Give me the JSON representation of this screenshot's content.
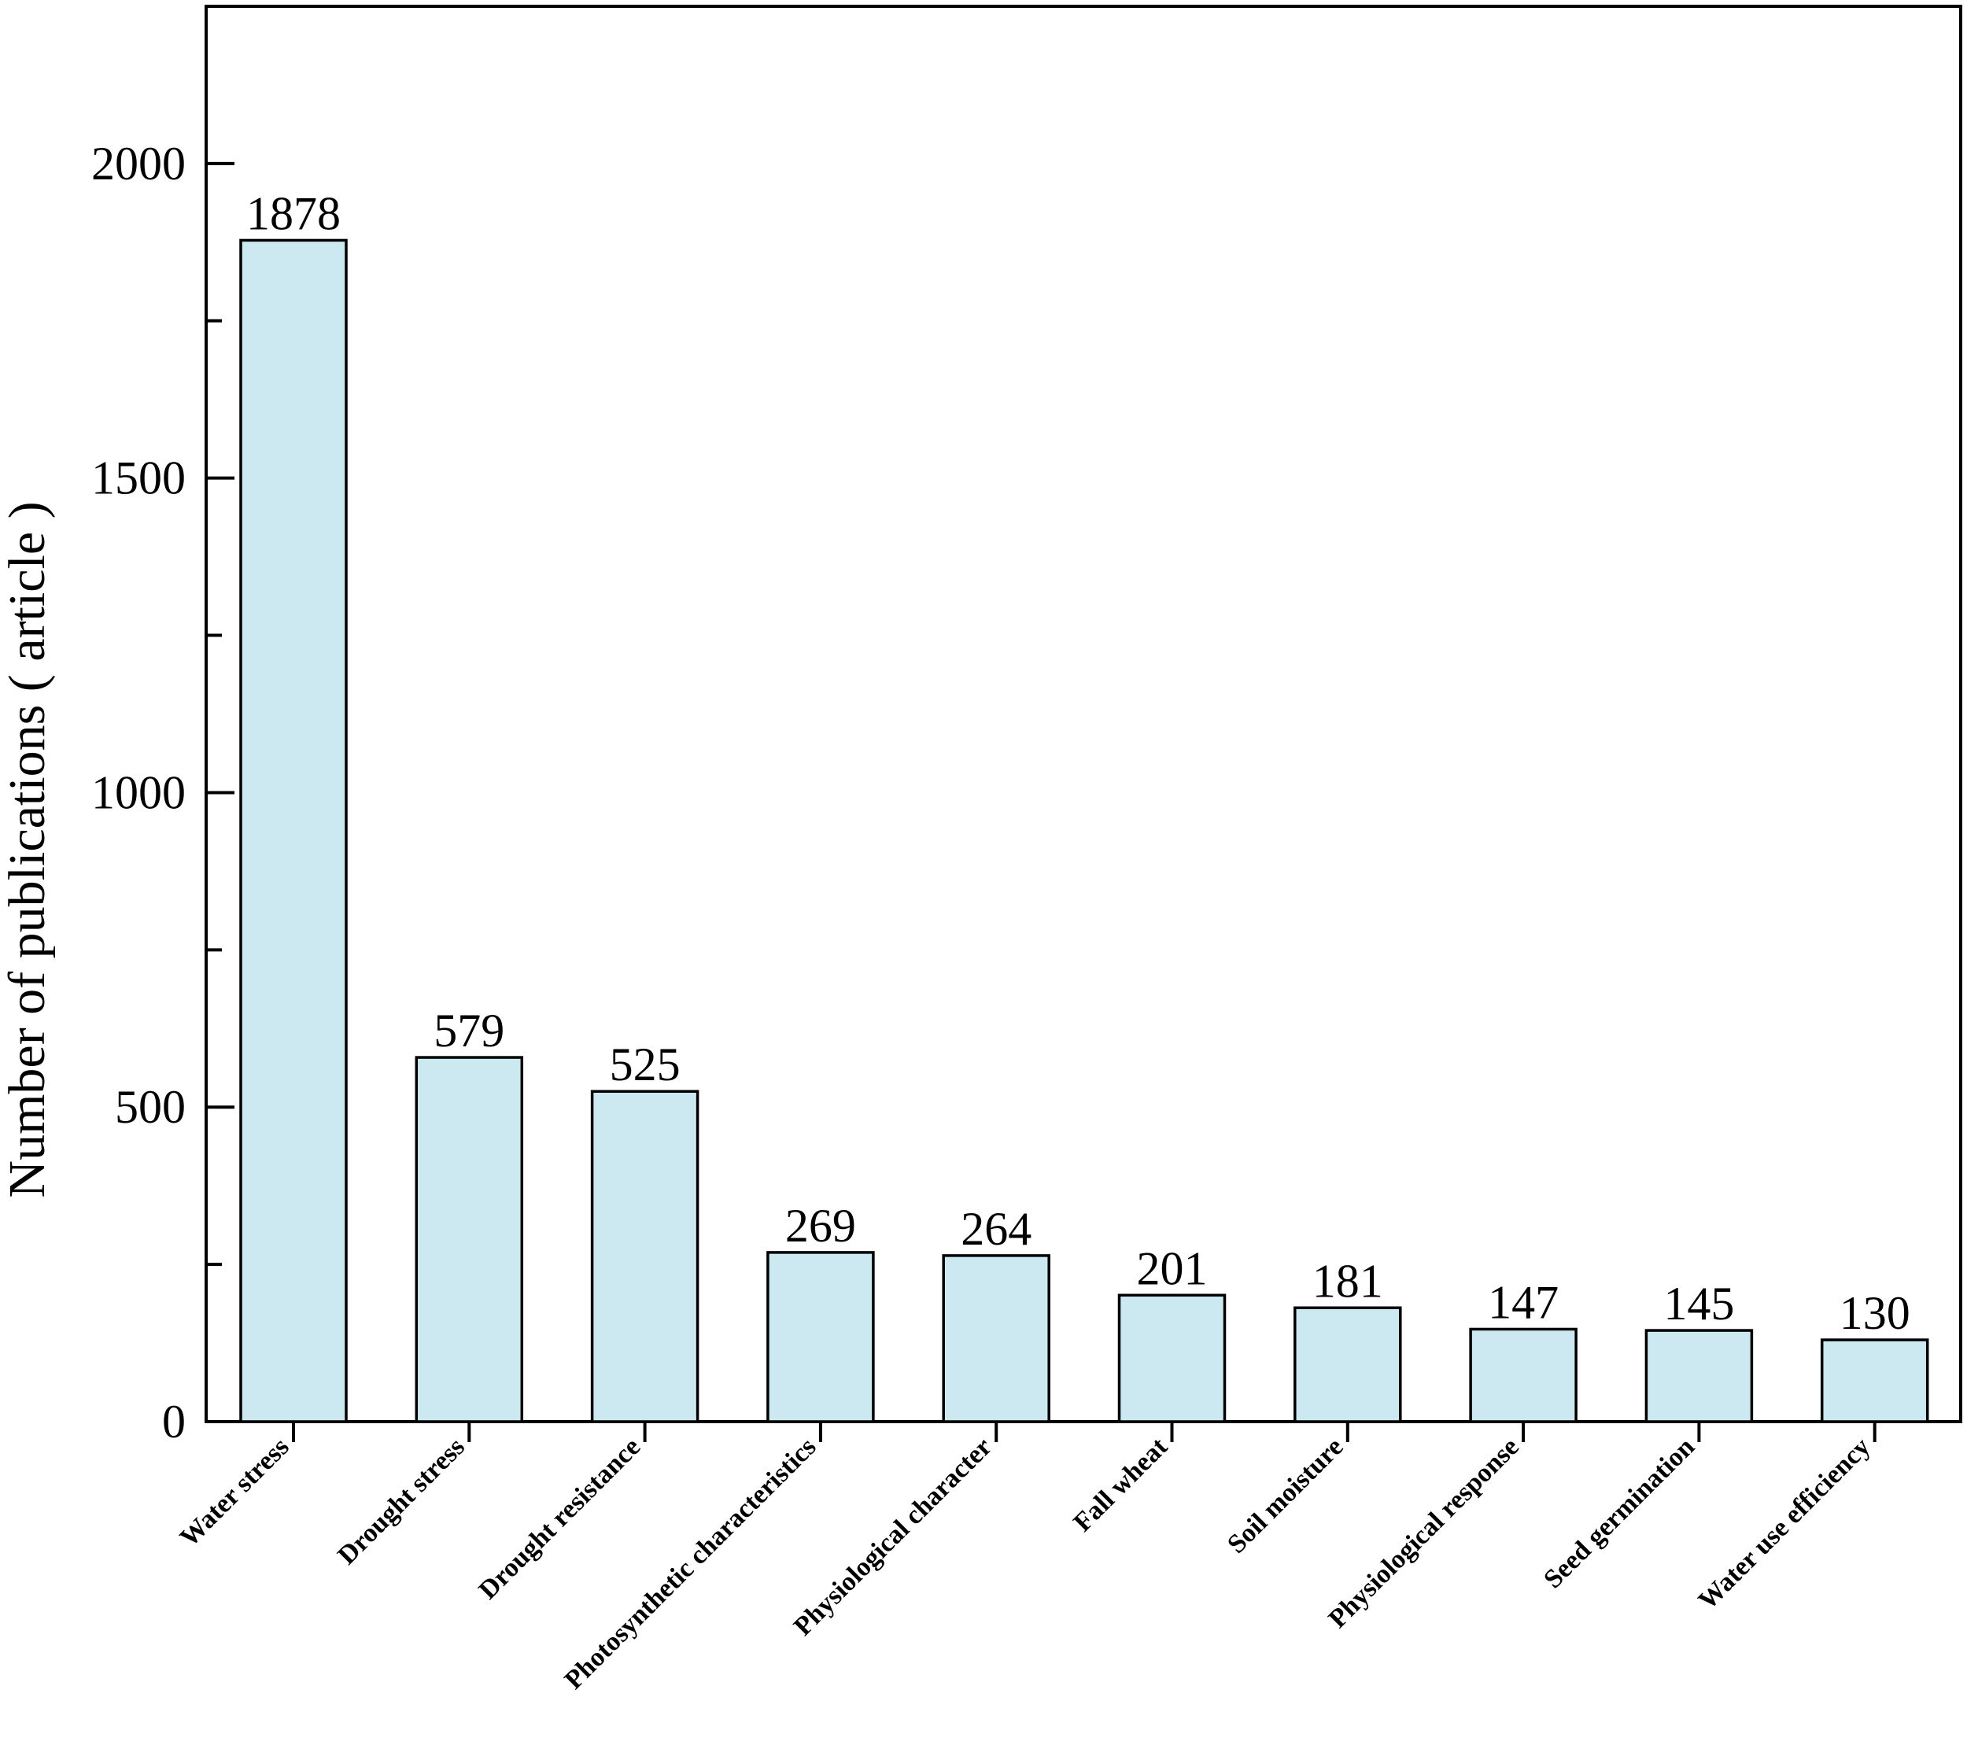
{
  "chart_data": {
    "type": "bar",
    "categories": [
      "Water stress",
      "Drought stress",
      "Drought resistance",
      "Photosynthetic characteristics",
      "Physiological character",
      "Fall wheat",
      "Soil moisture",
      "Physiological response",
      "Seed germination",
      "Water use efficiency"
    ],
    "values": [
      1878,
      579,
      525,
      269,
      264,
      201,
      181,
      147,
      145,
      130
    ],
    "value_labels": [
      "1878",
      "579",
      "525",
      "269",
      "264",
      "201",
      "181",
      "147",
      "145",
      "130"
    ],
    "title": "",
    "xlabel": "",
    "ylabel": "Number of publications ( article )",
    "ylim": [
      0,
      2250
    ],
    "yticks": [
      0,
      500,
      1000,
      1500,
      2000
    ],
    "ytick_labels": [
      "0",
      "500",
      "1000",
      "1500",
      "2000"
    ],
    "grid": false,
    "legend": "none",
    "colors": {
      "bar_fill": "#cce9f1",
      "bar_stroke": "#000000",
      "axis": "#000000"
    }
  }
}
